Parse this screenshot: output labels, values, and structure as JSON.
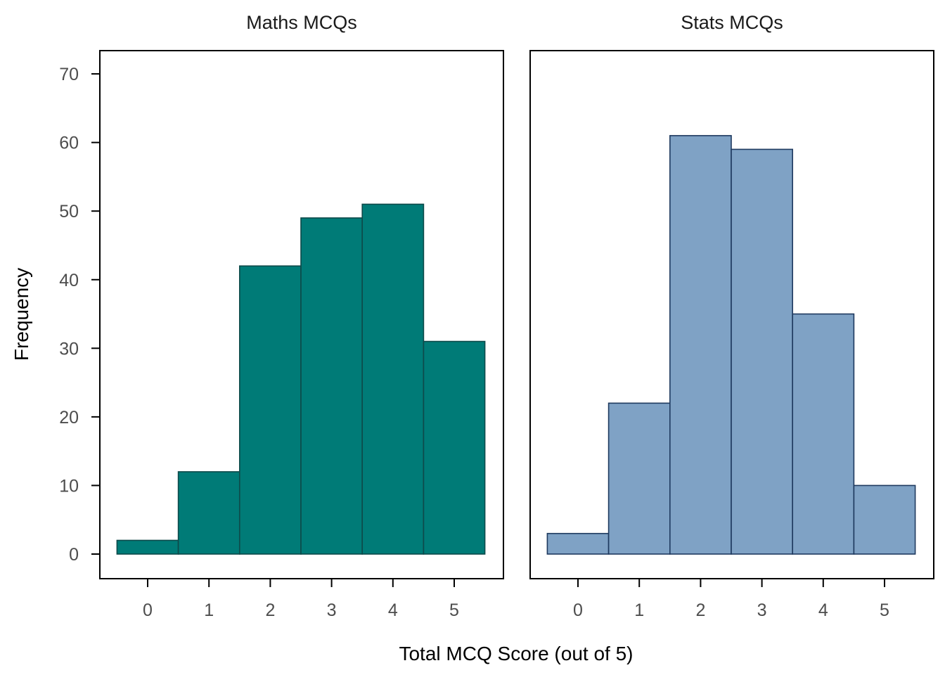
{
  "chart_data": {
    "type": "bar",
    "subtype": "faceted-histogram",
    "xlabel": "Total MCQ Score (out of 5)",
    "ylabel": "Frequency",
    "ylim": [
      0,
      72
    ],
    "y_ticks": [
      0,
      10,
      20,
      30,
      40,
      50,
      60,
      70
    ],
    "x_ticks": [
      0,
      1,
      2,
      3,
      4,
      5
    ],
    "grid": false,
    "legend": "none",
    "facets": [
      {
        "name": "Maths MCQs",
        "color": "#007B77",
        "stroke": "#0E4A4A",
        "categories": [
          0,
          1,
          2,
          3,
          4,
          5
        ],
        "values": [
          2,
          12,
          42,
          49,
          51,
          31
        ]
      },
      {
        "name": "Stats MCQs",
        "color": "#7FA2C5",
        "stroke": "#1F3A5F",
        "categories": [
          0,
          1,
          2,
          3,
          4,
          5
        ],
        "values": [
          3,
          22,
          61,
          59,
          35,
          10
        ]
      }
    ]
  }
}
